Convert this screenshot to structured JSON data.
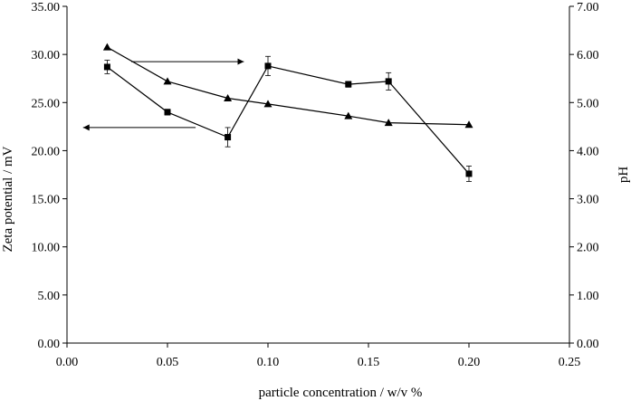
{
  "chart_data": {
    "type": "line",
    "title": "",
    "xlabel": "particle concentration / w/v %",
    "ylabel": "Zeta potential / mV",
    "y2label": "pH",
    "xlim": [
      0,
      0.25
    ],
    "ylim": [
      0,
      35
    ],
    "y2lim": [
      0,
      7
    ],
    "x_ticks": [
      0,
      0.05,
      0.1,
      0.15,
      0.2,
      0.25
    ],
    "x_tick_labels": [
      "0.00",
      "0.05",
      "0.10",
      "0.15",
      "0.20",
      "0.25"
    ],
    "y_ticks": [
      0,
      5,
      10,
      15,
      20,
      25,
      30,
      35
    ],
    "y_tick_labels": [
      "0.00",
      "5.00",
      "10.00",
      "15.00",
      "20.00",
      "25.00",
      "30.00",
      "35.00"
    ],
    "y2_ticks": [
      0,
      1,
      2,
      3,
      4,
      5,
      6,
      7
    ],
    "y2_tick_labels": [
      "0.00",
      "1.00",
      "2.00",
      "3.00",
      "4.00",
      "5.00",
      "6.00",
      "7.00"
    ],
    "series": [
      {
        "name": "Zeta potential",
        "axis": "left",
        "marker": "square",
        "x": [
          0.02,
          0.05,
          0.08,
          0.1,
          0.14,
          0.16,
          0.2
        ],
        "values": [
          28.7,
          24.0,
          21.4,
          28.8,
          26.9,
          27.2,
          17.6
        ],
        "error": [
          0.7,
          0.3,
          1.0,
          1.0,
          0.3,
          0.9,
          0.8
        ]
      },
      {
        "name": "pH",
        "axis": "right",
        "marker": "triangle",
        "x": [
          0.02,
          0.05,
          0.08,
          0.1,
          0.14,
          0.16,
          0.2
        ],
        "values": [
          6.15,
          5.44,
          5.09,
          4.97,
          4.72,
          4.58,
          4.54
        ]
      }
    ],
    "annotations": [
      {
        "type": "arrow",
        "direction": "right",
        "points_to": "pH",
        "x_from": 0.032,
        "x_to": 0.088,
        "y2": 5.85
      },
      {
        "type": "arrow",
        "direction": "left",
        "points_to": "Zeta potential",
        "x_from": 0.064,
        "x_to": 0.008,
        "y": 22.4
      }
    ]
  }
}
